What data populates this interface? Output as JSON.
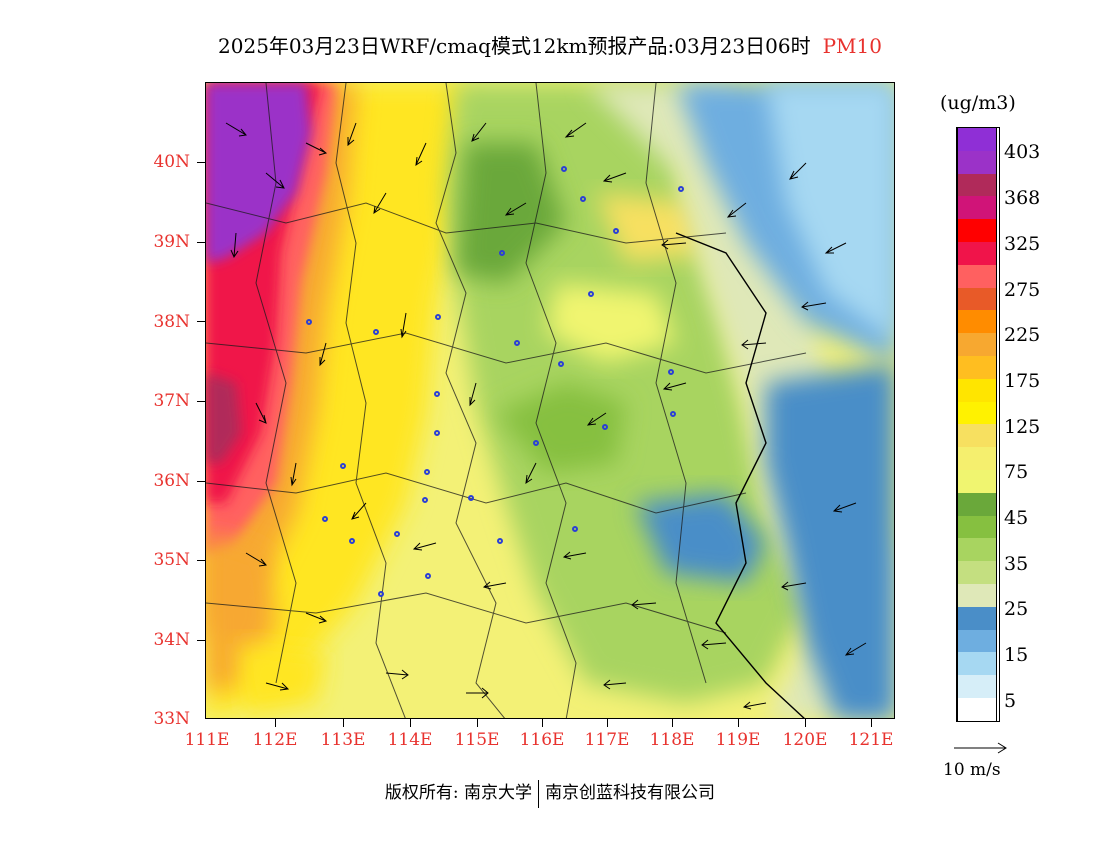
{
  "title": {
    "main": "2025年03月23日WRF/cmaq模式12km预报产品:03月23日06时",
    "pollutant": "PM10"
  },
  "axes": {
    "lat_labels": [
      "40N",
      "39N",
      "38N",
      "37N",
      "36N",
      "35N",
      "34N",
      "33N"
    ],
    "lon_labels": [
      "111E",
      "112E",
      "113E",
      "114E",
      "115E",
      "116E",
      "117E",
      "118E",
      "119E",
      "120E",
      "121E"
    ]
  },
  "legend": {
    "unit": "(ug/m3)",
    "labels": [
      "403",
      "368",
      "325",
      "275",
      "225",
      "175",
      "125",
      "75",
      "45",
      "35",
      "25",
      "15",
      "5"
    ],
    "colors": [
      "#8f2fd6",
      "#9b32c8",
      "#b02a5a",
      "#d01478",
      "#ff0000",
      "#f0144a",
      "#ff6060",
      "#e85a28",
      "#ff8c00",
      "#f7a830",
      "#ffbe20",
      "#ffe500",
      "#fff200",
      "#f7e060",
      "#f5ef6e",
      "#f0f570",
      "#6aa83a",
      "#86c040",
      "#a8d460",
      "#c4df80",
      "#dfe8b8",
      "#4a8ec8",
      "#6eaee0",
      "#a6d8f2",
      "#d6eef8",
      "#ffffff"
    ]
  },
  "wind_scale": {
    "label": "10 m/s"
  },
  "copyright": {
    "left": "版权所有: 南京大学",
    "right": "南京创蓝科技有限公司"
  }
}
